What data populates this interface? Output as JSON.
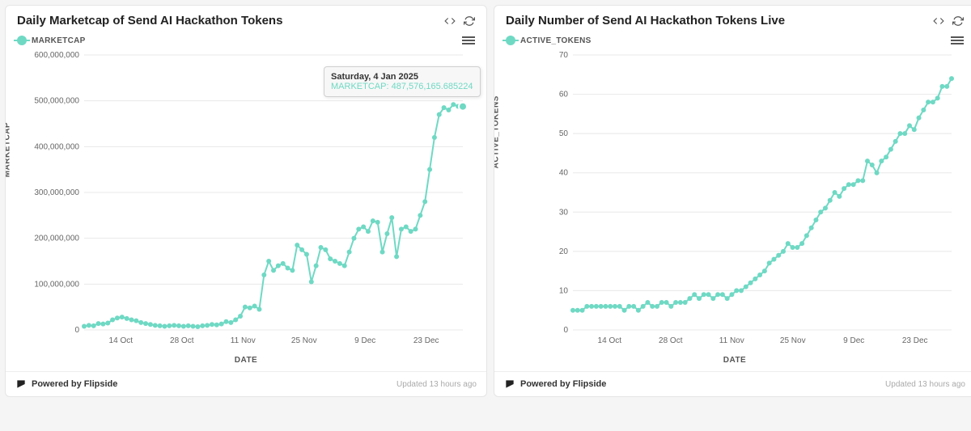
{
  "footer": {
    "powered_by": "Powered by Flipside",
    "updated": "Updated 13 hours ago"
  },
  "colors": {
    "series": "#6fd9c4",
    "grid": "#e8e8e8",
    "bg": "#ffffff",
    "text": "#666666"
  },
  "chart_left": {
    "title": "Daily Marketcap of Send AI Hackathon Tokens",
    "legend": "MARKETCAP",
    "ylabel": "MARKETCAP",
    "xlabel": "DATE",
    "type": "line",
    "ylim": [
      0,
      600000000
    ],
    "ytick_step": 100000000,
    "ytick_labels": [
      "0",
      "100,000,000",
      "200,000,000",
      "300,000,000",
      "400,000,000",
      "500,000,000",
      "600,000,000"
    ],
    "x_ticks": [
      "14 Oct",
      "28 Oct",
      "11 Nov",
      "25 Nov",
      "9 Dec",
      "23 Dec"
    ],
    "tooltip": {
      "date": "Saturday, 4 Jan 2025",
      "label": "MARKETCAP:",
      "value": "487,576,165.685224"
    },
    "line_color": "#6fd9c4",
    "marker_radius": 3,
    "data": [
      [
        0,
        8000000
      ],
      [
        1,
        10000000
      ],
      [
        2,
        9000000
      ],
      [
        3,
        14000000
      ],
      [
        4,
        13000000
      ],
      [
        5,
        15000000
      ],
      [
        6,
        22000000
      ],
      [
        7,
        26000000
      ],
      [
        8,
        28000000
      ],
      [
        9,
        25000000
      ],
      [
        10,
        22000000
      ],
      [
        11,
        20000000
      ],
      [
        12,
        16000000
      ],
      [
        13,
        14000000
      ],
      [
        14,
        12000000
      ],
      [
        15,
        10000000
      ],
      [
        16,
        9000000
      ],
      [
        17,
        8000000
      ],
      [
        18,
        9000000
      ],
      [
        19,
        10000000
      ],
      [
        20,
        9000000
      ],
      [
        21,
        8000000
      ],
      [
        22,
        9000000
      ],
      [
        23,
        8000000
      ],
      [
        24,
        7000000
      ],
      [
        25,
        9000000
      ],
      [
        26,
        10000000
      ],
      [
        27,
        12000000
      ],
      [
        28,
        11000000
      ],
      [
        29,
        13000000
      ],
      [
        30,
        18000000
      ],
      [
        31,
        16000000
      ],
      [
        32,
        22000000
      ],
      [
        33,
        30000000
      ],
      [
        34,
        50000000
      ],
      [
        35,
        48000000
      ],
      [
        36,
        52000000
      ],
      [
        37,
        45000000
      ],
      [
        38,
        120000000
      ],
      [
        39,
        150000000
      ],
      [
        40,
        130000000
      ],
      [
        41,
        140000000
      ],
      [
        42,
        145000000
      ],
      [
        43,
        135000000
      ],
      [
        44,
        130000000
      ],
      [
        45,
        185000000
      ],
      [
        46,
        175000000
      ],
      [
        47,
        165000000
      ],
      [
        48,
        105000000
      ],
      [
        49,
        140000000
      ],
      [
        50,
        180000000
      ],
      [
        51,
        175000000
      ],
      [
        52,
        155000000
      ],
      [
        53,
        150000000
      ],
      [
        54,
        145000000
      ],
      [
        55,
        140000000
      ],
      [
        56,
        170000000
      ],
      [
        57,
        200000000
      ],
      [
        58,
        220000000
      ],
      [
        59,
        225000000
      ],
      [
        60,
        215000000
      ],
      [
        61,
        238000000
      ],
      [
        62,
        235000000
      ],
      [
        63,
        170000000
      ],
      [
        64,
        210000000
      ],
      [
        65,
        245000000
      ],
      [
        66,
        160000000
      ],
      [
        67,
        220000000
      ],
      [
        68,
        225000000
      ],
      [
        69,
        215000000
      ],
      [
        70,
        220000000
      ],
      [
        71,
        250000000
      ],
      [
        72,
        280000000
      ],
      [
        73,
        350000000
      ],
      [
        74,
        420000000
      ],
      [
        75,
        470000000
      ],
      [
        76,
        485000000
      ],
      [
        77,
        480000000
      ],
      [
        78,
        492000000
      ],
      [
        79,
        488000000
      ],
      [
        80,
        487576165
      ]
    ]
  },
  "chart_right": {
    "title": "Daily Number of Send AI Hackathon Tokens Live",
    "legend": "ACTIVE_TOKENS",
    "ylabel": "ACTIVE_TOKENS",
    "xlabel": "DATE",
    "type": "line",
    "ylim": [
      0,
      70
    ],
    "ytick_step": 10,
    "ytick_labels": [
      "0",
      "10",
      "20",
      "30",
      "40",
      "50",
      "60",
      "70"
    ],
    "x_ticks": [
      "14 Oct",
      "28 Oct",
      "11 Nov",
      "25 Nov",
      "9 Dec",
      "23 Dec"
    ],
    "line_color": "#6fd9c4",
    "marker_radius": 3,
    "data": [
      [
        0,
        5
      ],
      [
        1,
        5
      ],
      [
        2,
        5
      ],
      [
        3,
        6
      ],
      [
        4,
        6
      ],
      [
        5,
        6
      ],
      [
        6,
        6
      ],
      [
        7,
        6
      ],
      [
        8,
        6
      ],
      [
        9,
        6
      ],
      [
        10,
        6
      ],
      [
        11,
        5
      ],
      [
        12,
        6
      ],
      [
        13,
        6
      ],
      [
        14,
        5
      ],
      [
        15,
        6
      ],
      [
        16,
        7
      ],
      [
        17,
        6
      ],
      [
        18,
        6
      ],
      [
        19,
        7
      ],
      [
        20,
        7
      ],
      [
        21,
        6
      ],
      [
        22,
        7
      ],
      [
        23,
        7
      ],
      [
        24,
        7
      ],
      [
        25,
        8
      ],
      [
        26,
        9
      ],
      [
        27,
        8
      ],
      [
        28,
        9
      ],
      [
        29,
        9
      ],
      [
        30,
        8
      ],
      [
        31,
        9
      ],
      [
        32,
        9
      ],
      [
        33,
        8
      ],
      [
        34,
        9
      ],
      [
        35,
        10
      ],
      [
        36,
        10
      ],
      [
        37,
        11
      ],
      [
        38,
        12
      ],
      [
        39,
        13
      ],
      [
        40,
        14
      ],
      [
        41,
        15
      ],
      [
        42,
        17
      ],
      [
        43,
        18
      ],
      [
        44,
        19
      ],
      [
        45,
        20
      ],
      [
        46,
        22
      ],
      [
        47,
        21
      ],
      [
        48,
        21
      ],
      [
        49,
        22
      ],
      [
        50,
        24
      ],
      [
        51,
        26
      ],
      [
        52,
        28
      ],
      [
        53,
        30
      ],
      [
        54,
        31
      ],
      [
        55,
        33
      ],
      [
        56,
        35
      ],
      [
        57,
        34
      ],
      [
        58,
        36
      ],
      [
        59,
        37
      ],
      [
        60,
        37
      ],
      [
        61,
        38
      ],
      [
        62,
        38
      ],
      [
        63,
        43
      ],
      [
        64,
        42
      ],
      [
        65,
        40
      ],
      [
        66,
        43
      ],
      [
        67,
        44
      ],
      [
        68,
        46
      ],
      [
        69,
        48
      ],
      [
        70,
        50
      ],
      [
        71,
        50
      ],
      [
        72,
        52
      ],
      [
        73,
        51
      ],
      [
        74,
        54
      ],
      [
        75,
        56
      ],
      [
        76,
        58
      ],
      [
        77,
        58
      ],
      [
        78,
        59
      ],
      [
        79,
        62
      ],
      [
        80,
        62
      ],
      [
        81,
        64
      ]
    ]
  }
}
